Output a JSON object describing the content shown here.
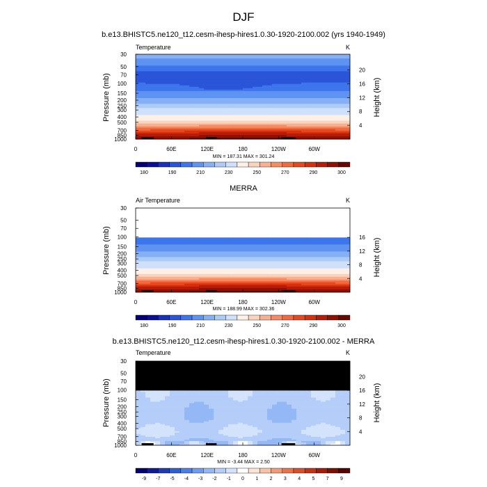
{
  "figure_title": "DJF",
  "colors": {
    "missing": "#000000",
    "abs_levels": [
      "#05007a",
      "#0a1096",
      "#1a30b8",
      "#2a55d8",
      "#3d75ec",
      "#5e93f2",
      "#86b0f5",
      "#aecbf8",
      "#cfe0fa",
      "#fdf0e6",
      "#fbd3bd",
      "#f8b090",
      "#f48b62",
      "#ef6a3c",
      "#e8481f",
      "#d8300d",
      "#b81c08",
      "#901004",
      "#6a0600"
    ],
    "diff_levels": [
      "#060070",
      "#0f1c94",
      "#1d3cb4",
      "#2f5ed2",
      "#4a80e8",
      "#6f9cf0",
      "#94b8f5",
      "#b4cdf9",
      "#d4e3fc",
      "#ffffff",
      "#fde3d4",
      "#f8c2a5",
      "#f19c78",
      "#e8744d",
      "#db4f2a",
      "#c53214",
      "#a41c07",
      "#7d0e02",
      "#560400"
    ]
  },
  "chart_data": [
    {
      "type": "heatmap",
      "id": "panel1",
      "title": "b.e13.BHISTC5.ne120_t12.cesm-ihesp-hires1.0.30-1920-2100.002 (yrs 1940-1949)",
      "left_label": "Temperature",
      "right_label": "K",
      "ylabel": "Pressure (mb)",
      "y2label": "Height (km)",
      "yticks": [
        "30",
        "50",
        "70",
        "100",
        "150",
        "200",
        "250",
        "300",
        "400",
        "500",
        "700",
        "850",
        "1000"
      ],
      "y2ticks": [
        "20",
        "16",
        "12",
        "8",
        "4"
      ],
      "xticks": [
        "0",
        "60E",
        "120E",
        "180",
        "120W",
        "60W"
      ],
      "stats": "MIN = 187.31   MAX = 301.24",
      "min": 187.31,
      "max": 301.24,
      "colorbar_labels": [
        "180",
        "190",
        "210",
        "230",
        "250",
        "270",
        "290",
        "300"
      ],
      "field": "temp",
      "missing_above_mb": 0
    },
    {
      "type": "heatmap",
      "id": "panel2",
      "title": "MERRA",
      "left_label": "Air Temperature",
      "right_label": "K",
      "ylabel": "Pressure (mb)",
      "y2label": "Height (km)",
      "yticks": [
        "30",
        "50",
        "70",
        "100",
        "150",
        "200",
        "250",
        "300",
        "400",
        "500",
        "700",
        "850",
        "1000"
      ],
      "y2ticks": [
        "16",
        "12",
        "8",
        "4"
      ],
      "xticks": [
        "0",
        "60E",
        "120E",
        "180",
        "120W",
        "60W"
      ],
      "stats": "MIN = 188.99   MAX = 302.36",
      "min": 188.99,
      "max": 302.36,
      "colorbar_labels": [
        "180",
        "190",
        "210",
        "230",
        "250",
        "270",
        "290",
        "300"
      ],
      "field": "temp",
      "blank_above_mb": 100
    },
    {
      "type": "heatmap",
      "id": "panel3",
      "title": "b.e13.BHISTC5.ne120_t12.cesm-ihesp-hires1.0.30-1920-2100.002 - MERRA",
      "left_label": "Temperature",
      "right_label": "K",
      "ylabel": "Pressure (mb)",
      "y2label": "Height (km)",
      "yticks": [
        "30",
        "50",
        "70",
        "100",
        "150",
        "200",
        "250",
        "300",
        "400",
        "500",
        "700",
        "850",
        "1000"
      ],
      "y2ticks": [
        "20",
        "16",
        "12",
        "8",
        "4"
      ],
      "xticks": [
        "0",
        "60E",
        "120E",
        "180",
        "120W",
        "60W"
      ],
      "stats": "MIN = -3.44   MAX =  2.50",
      "min": -3.44,
      "max": 2.5,
      "colorbar_labels": [
        "-9",
        "-7",
        "-5",
        "-4",
        "-3",
        "-2",
        "-1",
        "0",
        "1",
        "2",
        "3",
        "4",
        "5",
        "7",
        "9"
      ],
      "field": "diff",
      "missing_above_mb": 100
    }
  ]
}
